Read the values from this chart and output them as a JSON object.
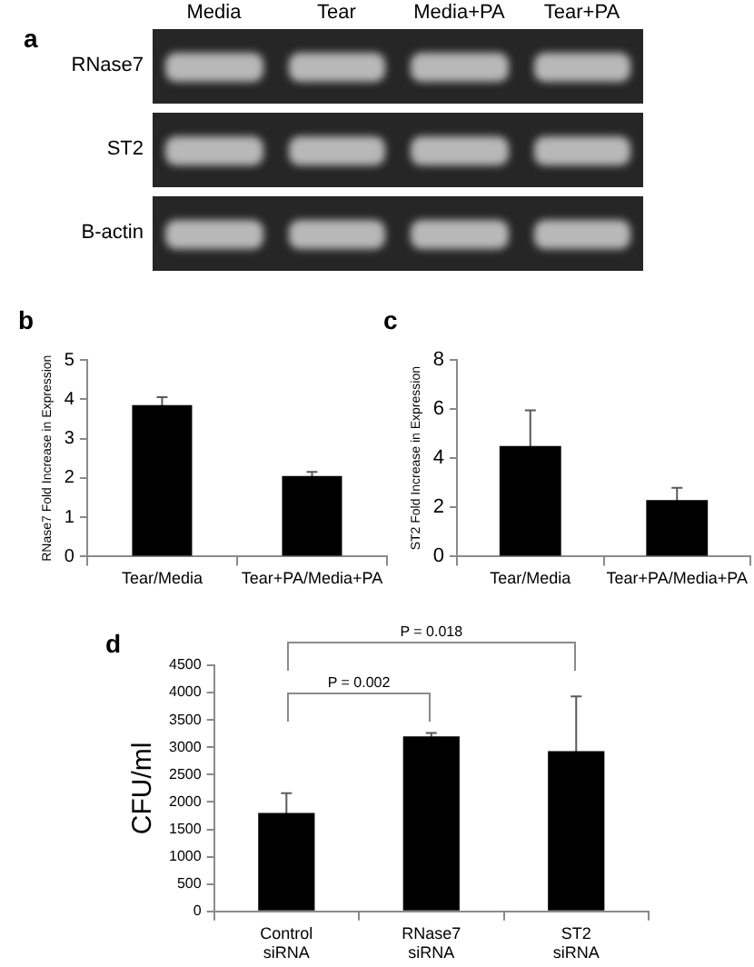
{
  "chart_data": [
    {
      "type": "other",
      "title": "a",
      "categories": [
        "Media",
        "Tear",
        "Media+PA",
        "Tear+PA"
      ],
      "y_categories": [
        "RNase7",
        "ST2",
        "B-actin"
      ]
    },
    {
      "type": "bar",
      "title": "b",
      "ylabel": "RNase7 Fold Increase in Expression",
      "categories": [
        "Tear/Media",
        "Tear+PA/Media+PA"
      ],
      "values": [
        3.85,
        2.05
      ],
      "errors": [
        0.2,
        0.1
      ],
      "color": "#000000",
      "ylim": [
        0,
        5
      ],
      "yticks": [
        0,
        1,
        2,
        3,
        4,
        5
      ]
    },
    {
      "type": "bar",
      "title": "c",
      "ylabel": "ST2 Fold Increase in Expression",
      "categories": [
        "Tear/Media",
        "Tear+PA/Media+PA"
      ],
      "values": [
        4.5,
        2.3
      ],
      "errors": [
        1.45,
        0.5
      ],
      "color": "#000000",
      "ylim": [
        0,
        8
      ],
      "yticks": [
        0,
        2,
        4,
        6,
        8
      ]
    },
    {
      "type": "bar",
      "title": "d",
      "ylabel": "CFU/ml",
      "categories": [
        "Control siRNA",
        "RNase7 siRNA",
        "ST2 siRNA"
      ],
      "values": [
        1800,
        3200,
        2930
      ],
      "errors": [
        360,
        60,
        1000
      ],
      "color": "#000000",
      "ylim": [
        0,
        4500
      ],
      "yticks": [
        0,
        500,
        1000,
        1500,
        2000,
        2500,
        3000,
        3500,
        4000,
        4500
      ],
      "annotations": [
        "P = 0.002",
        "P = 0.018"
      ]
    }
  ]
}
